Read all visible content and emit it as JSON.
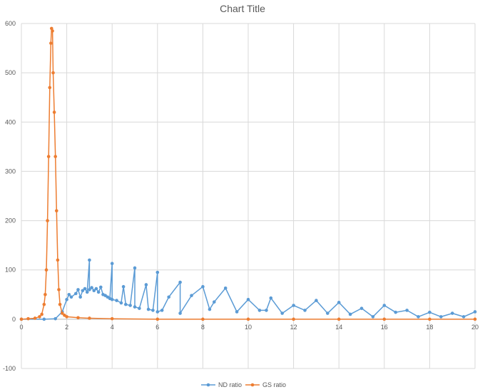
{
  "chart_data": {
    "type": "scatter",
    "title": "Chart Title",
    "xlabel": "",
    "ylabel": "",
    "xlim": [
      0,
      20
    ],
    "ylim": [
      -100,
      600
    ],
    "xticks": [
      0,
      2,
      4,
      6,
      8,
      10,
      12,
      14,
      16,
      18,
      20
    ],
    "yticks": [
      -100,
      0,
      100,
      200,
      300,
      400,
      500,
      600
    ],
    "grid": true,
    "legend_position": "bottom",
    "series": [
      {
        "name": "ND ratio",
        "color": "#5B9BD5",
        "points": [
          [
            0.0,
            0
          ],
          [
            1.0,
            0
          ],
          [
            1.5,
            1
          ],
          [
            1.8,
            15
          ],
          [
            2.0,
            40
          ],
          [
            2.1,
            50
          ],
          [
            2.2,
            45
          ],
          [
            2.4,
            52
          ],
          [
            2.5,
            60
          ],
          [
            2.6,
            45
          ],
          [
            2.7,
            58
          ],
          [
            2.8,
            62
          ],
          [
            2.9,
            55
          ],
          [
            3.0,
            120
          ],
          [
            3.0,
            60
          ],
          [
            3.1,
            64
          ],
          [
            3.2,
            58
          ],
          [
            3.3,
            62
          ],
          [
            3.4,
            55
          ],
          [
            3.5,
            65
          ],
          [
            3.6,
            50
          ],
          [
            3.7,
            48
          ],
          [
            3.8,
            45
          ],
          [
            3.9,
            42
          ],
          [
            4.0,
            113
          ],
          [
            4.0,
            40
          ],
          [
            4.2,
            38
          ],
          [
            4.4,
            33
          ],
          [
            4.5,
            66
          ],
          [
            4.6,
            30
          ],
          [
            4.8,
            28
          ],
          [
            5.0,
            104
          ],
          [
            5.0,
            25
          ],
          [
            5.2,
            22
          ],
          [
            5.5,
            70
          ],
          [
            5.6,
            20
          ],
          [
            5.8,
            18
          ],
          [
            6.0,
            95
          ],
          [
            6.0,
            15
          ],
          [
            6.2,
            18
          ],
          [
            6.5,
            45
          ],
          [
            7.0,
            75
          ],
          [
            7.0,
            12
          ],
          [
            7.5,
            48
          ],
          [
            8.0,
            66
          ],
          [
            8.3,
            20
          ],
          [
            8.5,
            35
          ],
          [
            9.0,
            63
          ],
          [
            9.5,
            15
          ],
          [
            10.0,
            40
          ],
          [
            10.5,
            18
          ],
          [
            10.8,
            18
          ],
          [
            11.0,
            43
          ],
          [
            11.5,
            12
          ],
          [
            12.0,
            28
          ],
          [
            12.5,
            18
          ],
          [
            13.0,
            38
          ],
          [
            13.5,
            12
          ],
          [
            14.0,
            34
          ],
          [
            14.5,
            10
          ],
          [
            15.0,
            22
          ],
          [
            15.5,
            5
          ],
          [
            16.0,
            28
          ],
          [
            16.5,
            14
          ],
          [
            17.0,
            18
          ],
          [
            17.5,
            5
          ],
          [
            18.0,
            14
          ],
          [
            18.5,
            5
          ],
          [
            19.0,
            12
          ],
          [
            19.5,
            5
          ],
          [
            20.0,
            15
          ]
        ]
      },
      {
        "name": "GS ratio",
        "color": "#ED7D31",
        "points": [
          [
            0.0,
            0
          ],
          [
            0.3,
            1
          ],
          [
            0.6,
            2
          ],
          [
            0.8,
            5
          ],
          [
            0.9,
            10
          ],
          [
            1.0,
            30
          ],
          [
            1.05,
            50
          ],
          [
            1.1,
            100
          ],
          [
            1.15,
            200
          ],
          [
            1.2,
            330
          ],
          [
            1.25,
            470
          ],
          [
            1.3,
            560
          ],
          [
            1.33,
            590
          ],
          [
            1.37,
            585
          ],
          [
            1.4,
            500
          ],
          [
            1.45,
            420
          ],
          [
            1.5,
            330
          ],
          [
            1.55,
            220
          ],
          [
            1.6,
            120
          ],
          [
            1.65,
            60
          ],
          [
            1.7,
            30
          ],
          [
            1.8,
            12
          ],
          [
            1.9,
            8
          ],
          [
            2.0,
            5
          ],
          [
            2.5,
            3
          ],
          [
            3.0,
            2
          ],
          [
            4.0,
            1
          ],
          [
            6.0,
            0
          ],
          [
            8.0,
            0
          ],
          [
            10.0,
            0
          ],
          [
            12.0,
            0
          ],
          [
            14.0,
            0
          ],
          [
            16.0,
            0
          ],
          [
            18.0,
            0
          ],
          [
            20.0,
            0
          ]
        ]
      }
    ]
  }
}
